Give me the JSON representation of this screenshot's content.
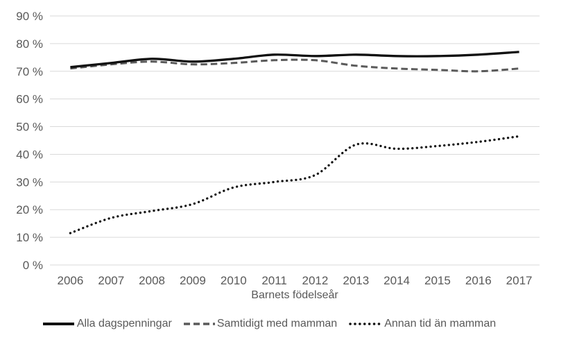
{
  "chart_data": {
    "type": "line",
    "title": "",
    "xlabel": "Barnets födelseår",
    "ylabel": "",
    "x_categories": [
      "2006",
      "2007",
      "2008",
      "2009",
      "2010",
      "2011",
      "2012",
      "2013",
      "2014",
      "2015",
      "2016",
      "2017"
    ],
    "y_ticks": [
      {
        "value": 0,
        "label": "0 %"
      },
      {
        "value": 10,
        "label": "10 %"
      },
      {
        "value": 20,
        "label": "20 %"
      },
      {
        "value": 30,
        "label": "30 %"
      },
      {
        "value": 40,
        "label": "40 %"
      },
      {
        "value": 50,
        "label": "50 %"
      },
      {
        "value": 60,
        "label": "60 %"
      },
      {
        "value": 70,
        "label": "70 %"
      },
      {
        "value": 80,
        "label": "80 %"
      },
      {
        "value": 90,
        "label": "90 %"
      }
    ],
    "ylim": [
      0,
      90
    ],
    "grid": "horizontal",
    "legend_position": "bottom",
    "gridline_color": "#d9d9d9",
    "label_color": "#595959",
    "series": [
      {
        "name": "Alla dagspenningar",
        "style": "solid",
        "color": "#111111",
        "values": [
          71.5,
          73,
          74.5,
          73.5,
          74.5,
          76,
          75.5,
          76,
          75.5,
          75.5,
          76,
          77
        ]
      },
      {
        "name": "Samtidigt med mamman",
        "style": "dashed",
        "color": "#5a5a5a",
        "values": [
          71,
          72.5,
          73.5,
          72.5,
          73,
          74,
          74,
          72,
          71,
          70.5,
          70,
          71
        ]
      },
      {
        "name": "Annan tid än mamman",
        "style": "dotted",
        "color": "#111111",
        "values": [
          11.5,
          17,
          19.5,
          22,
          28,
          30,
          32.5,
          43.5,
          42,
          43,
          44.5,
          46.5
        ]
      }
    ]
  }
}
